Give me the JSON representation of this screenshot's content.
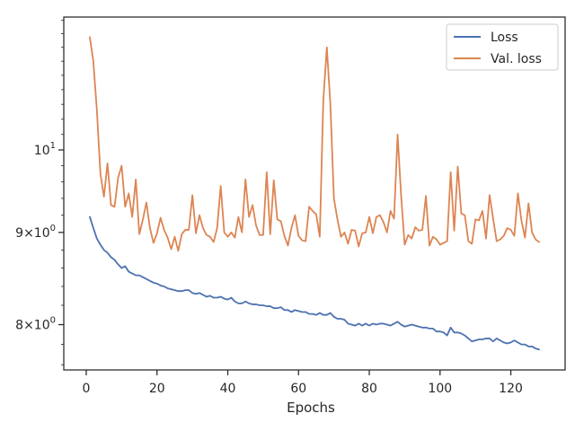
{
  "chart_data": {
    "type": "line",
    "title": "",
    "xlabel": "Epochs",
    "ylabel": "",
    "yscale": "log",
    "xlim": [
      -6.35,
      135.35
    ],
    "ylim": [
      7.55,
      11.85
    ],
    "grid": false,
    "legend_position": "top-right",
    "x_ticks": [
      0,
      20,
      40,
      60,
      80,
      100,
      120
    ],
    "x_tick_labels": [
      "0",
      "20",
      "40",
      "60",
      "80",
      "100",
      "120"
    ],
    "y_ticks": [
      8,
      9,
      10
    ],
    "y_tick_labels": [
      {
        "base": "8",
        "sep": "×",
        "pow_base": "10",
        "exp": "0"
      },
      {
        "base": "9",
        "sep": "×",
        "pow_base": "10",
        "exp": "0"
      },
      {
        "base": "",
        "sep": "",
        "pow_base": "10",
        "exp": "1"
      }
    ],
    "colors": {
      "Loss": "#4c72b0",
      "Val. loss": "#dd8452"
    },
    "series": [
      {
        "name": "Loss",
        "start_x": 1,
        "values": [
          9.18,
          9.05,
          8.93,
          8.86,
          8.8,
          8.77,
          8.72,
          8.69,
          8.64,
          8.6,
          8.62,
          8.56,
          8.54,
          8.52,
          8.52,
          8.5,
          8.48,
          8.46,
          8.44,
          8.43,
          8.41,
          8.4,
          8.38,
          8.37,
          8.36,
          8.35,
          8.35,
          8.36,
          8.36,
          8.33,
          8.32,
          8.33,
          8.31,
          8.29,
          8.3,
          8.28,
          8.28,
          8.29,
          8.27,
          8.26,
          8.28,
          8.24,
          8.22,
          8.22,
          8.24,
          8.22,
          8.21,
          8.21,
          8.2,
          8.2,
          8.19,
          8.19,
          8.17,
          8.17,
          8.18,
          8.15,
          8.15,
          8.13,
          8.15,
          8.14,
          8.13,
          8.13,
          8.11,
          8.11,
          8.1,
          8.12,
          8.1,
          8.1,
          8.12,
          8.08,
          8.06,
          8.06,
          8.05,
          8.01,
          8.0,
          7.99,
          8.01,
          7.99,
          8.01,
          7.99,
          8.01,
          8.0,
          8.01,
          8.01,
          8.0,
          7.99,
          8.01,
          8.03,
          8.0,
          7.98,
          7.99,
          8.0,
          7.99,
          7.98,
          7.97,
          7.97,
          7.96,
          7.96,
          7.93,
          7.93,
          7.92,
          7.89,
          7.97,
          7.92,
          7.92,
          7.91,
          7.89,
          7.86,
          7.83,
          7.84,
          7.85,
          7.85,
          7.86,
          7.86,
          7.83,
          7.86,
          7.84,
          7.82,
          7.81,
          7.82,
          7.84,
          7.82,
          7.8,
          7.8,
          7.78,
          7.78,
          7.76,
          7.75
        ]
      },
      {
        "name": "Val. loss",
        "start_x": 1,
        "values": [
          11.55,
          11.2,
          10.52,
          9.7,
          9.42,
          9.83,
          9.32,
          9.3,
          9.65,
          9.8,
          9.3,
          9.46,
          9.18,
          9.63,
          8.98,
          9.15,
          9.35,
          9.05,
          8.88,
          8.99,
          9.17,
          9.03,
          8.94,
          8.81,
          8.95,
          8.79,
          8.98,
          9.03,
          9.03,
          9.44,
          8.99,
          9.2,
          9.05,
          8.97,
          8.95,
          8.89,
          9.05,
          9.55,
          9.0,
          8.95,
          9.0,
          8.94,
          9.18,
          9.0,
          9.63,
          9.18,
          9.32,
          9.08,
          8.97,
          8.97,
          9.72,
          8.98,
          9.62,
          9.15,
          9.13,
          8.96,
          8.85,
          9.05,
          9.2,
          8.96,
          8.91,
          8.9,
          9.3,
          9.25,
          9.21,
          8.95,
          10.65,
          11.4,
          10.6,
          9.4,
          9.15,
          8.95,
          9.0,
          8.87,
          9.03,
          9.02,
          8.84,
          8.99,
          9.0,
          9.18,
          8.99,
          9.18,
          9.2,
          9.12,
          9.0,
          9.25,
          9.16,
          10.2,
          9.43,
          8.86,
          8.97,
          8.93,
          9.06,
          9.02,
          9.03,
          9.43,
          8.85,
          8.95,
          8.92,
          8.86,
          8.88,
          8.9,
          9.72,
          9.02,
          9.79,
          9.22,
          9.2,
          8.9,
          8.87,
          9.15,
          9.14,
          9.25,
          8.93,
          9.44,
          9.16,
          8.9,
          8.92,
          8.96,
          9.05,
          9.03,
          8.96,
          9.46,
          9.14,
          8.94,
          9.34,
          9.0,
          8.92,
          8.89
        ]
      }
    ]
  }
}
